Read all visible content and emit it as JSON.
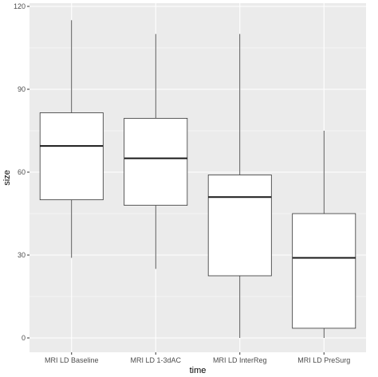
{
  "chart_data": {
    "type": "boxplot",
    "title": "",
    "xlabel": "time",
    "ylabel": "size",
    "ylim": [
      -5,
      120
    ],
    "yticks": [
      0,
      30,
      60,
      90,
      120
    ],
    "grid": true,
    "legend": "none",
    "categories": [
      "MRI LD Baseline",
      "MRI LD 1-3dAC",
      "MRI LD InterReg",
      "MRI LD PreSurg"
    ],
    "boxes": [
      {
        "category": "MRI LD Baseline",
        "whisker_low": 29,
        "q1": 50,
        "median": 69.5,
        "q3": 81.5,
        "whisker_high": 115
      },
      {
        "category": "MRI LD 1-3dAC",
        "whisker_low": 25,
        "q1": 48,
        "median": 65,
        "q3": 79.5,
        "whisker_high": 110
      },
      {
        "category": "MRI LD InterReg",
        "whisker_low": 0,
        "q1": 22.5,
        "median": 51,
        "q3": 59,
        "whisker_high": 110
      },
      {
        "category": "MRI LD PreSurg",
        "whisker_low": 0,
        "q1": 3.5,
        "median": 29,
        "q3": 45,
        "whisker_high": 75
      }
    ],
    "colors": {
      "panel": "#ebebeb",
      "grid_major": "#ffffff",
      "box_fill": "#ffffff",
      "box_line": "#333333"
    }
  }
}
